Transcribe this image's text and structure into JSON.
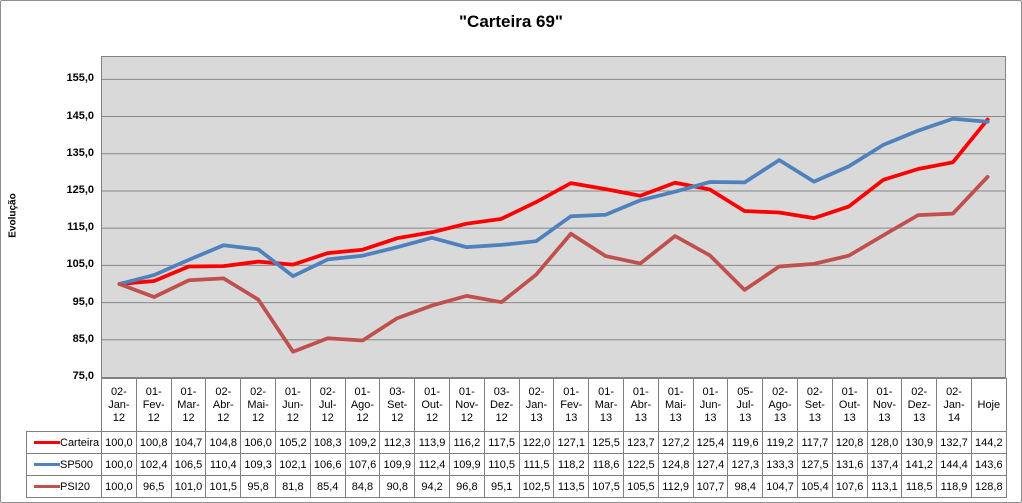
{
  "chart_data": {
    "type": "line",
    "title": "\"Carteira 69\"",
    "ylabel": "Evolução",
    "xlabel": "",
    "grid": true,
    "legend_position": "data-table-left",
    "ylim": [
      75,
      161
    ],
    "y_major": 10,
    "y_ticks": [
      "155,0",
      "145,0",
      "135,0",
      "125,0",
      "115,0",
      "105,0",
      "95,0",
      "85,0",
      "75,0"
    ],
    "categories": [
      "02-Jan-12",
      "01-Fev-12",
      "01-Mar-12",
      "02-Abr-12",
      "02-Mai-12",
      "01-Jun-12",
      "02-Jul-12",
      "01-Ago-12",
      "03-Set-12",
      "01-Out-12",
      "01-Nov-12",
      "03-Dez-12",
      "02-Jan-13",
      "01-Fev-13",
      "01-Mar-13",
      "01-Abr-13",
      "01-Mai-13",
      "01-Jun-13",
      "05-Jul-13",
      "02-Ago-13",
      "02-Set-13",
      "01-Out-13",
      "01-Nov-13",
      "02-Dez-13",
      "02-Jan-14",
      "Hoje"
    ],
    "series": [
      {
        "name": "Carteira",
        "color": "#fe0000",
        "values": [
          "100,0",
          "100,8",
          "104,7",
          "104,8",
          "106,0",
          "105,2",
          "108,3",
          "109,2",
          "112,3",
          "113,9",
          "116,2",
          "117,5",
          "122,0",
          "127,1",
          "125,5",
          "123,7",
          "127,2",
          "125,4",
          "119,6",
          "119,2",
          "117,7",
          "120,8",
          "128,0",
          "130,9",
          "132,7",
          "144,2"
        ]
      },
      {
        "name": "SP500",
        "color": "#4f81bd",
        "values": [
          "100,0",
          "102,4",
          "106,5",
          "110,4",
          "109,3",
          "102,1",
          "106,6",
          "107,6",
          "109,9",
          "112,4",
          "109,9",
          "110,5",
          "111,5",
          "118,2",
          "118,6",
          "122,5",
          "124,8",
          "127,4",
          "127,3",
          "133,3",
          "127,5",
          "131,6",
          "137,4",
          "141,2",
          "144,4",
          "143,6"
        ]
      },
      {
        "name": "PSI20",
        "color": "#c0504d",
        "values": [
          "100,0",
          "96,5",
          "101,0",
          "101,5",
          "95,8",
          "81,8",
          "85,4",
          "84,8",
          "90,8",
          "94,2",
          "96,8",
          "95,1",
          "102,5",
          "113,5",
          "107,5",
          "105,5",
          "112,9",
          "107,7",
          "98,4",
          "104,7",
          "105,4",
          "107,6",
          "113,1",
          "118,5",
          "118,9",
          "128,8"
        ]
      }
    ],
    "plot_background": "#d9d9d9",
    "gridline_color": "#878787",
    "border_color": "#828282"
  }
}
